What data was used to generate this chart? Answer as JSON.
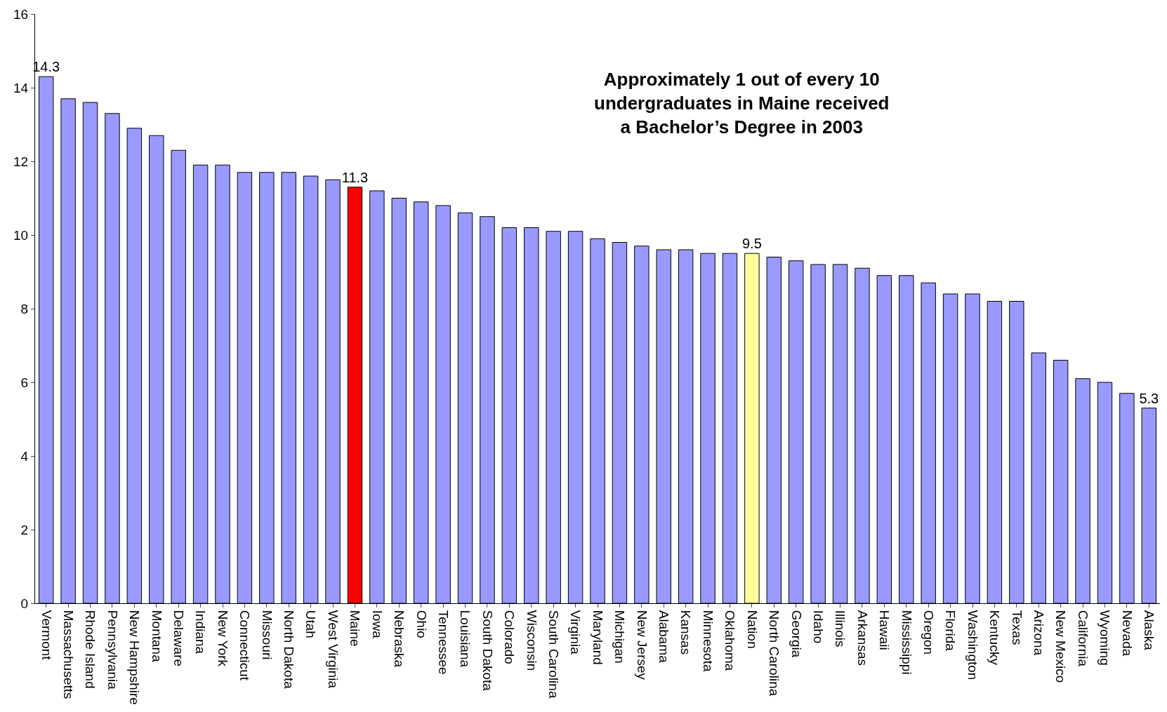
{
  "chart_data": {
    "type": "bar",
    "categories": [
      "Vermont",
      "Massachusetts",
      "Rhode Island",
      "Pennsylvania",
      "New Hampshire",
      "Montana",
      "Delaware",
      "Indiana",
      "New York",
      "Connecticut",
      "Missouri",
      "North Dakota",
      "Utah",
      "West Virginia",
      "Maine",
      "Iowa",
      "Nebraska",
      "Ohio",
      "Tennessee",
      "Louisiana",
      "South Dakota",
      "Colorado",
      "Wisconsin",
      "South Carolina",
      "Virginia",
      "Maryland",
      "Michigan",
      "New Jersey",
      "Alabama",
      "Kansas",
      "Minnesota",
      "Oklahoma",
      "Nation",
      "North Carolina",
      "Georgia",
      "Idaho",
      "Illinois",
      "Arkansas",
      "Hawaii",
      "Mississippi",
      "Oregon",
      "Florida",
      "Washington",
      "Kentucky",
      "Texas",
      "Arizona",
      "New Mexico",
      "California",
      "Wyoming",
      "Nevada",
      "Alaska"
    ],
    "values": [
      14.3,
      13.7,
      13.6,
      13.3,
      12.9,
      12.7,
      12.3,
      11.9,
      11.9,
      11.7,
      11.7,
      11.7,
      11.6,
      11.5,
      11.3,
      11.2,
      11.0,
      10.9,
      10.8,
      10.6,
      10.5,
      10.2,
      10.2,
      10.1,
      10.1,
      9.9,
      9.8,
      9.7,
      9.6,
      9.6,
      9.5,
      9.5,
      9.5,
      9.4,
      9.3,
      9.2,
      9.2,
      9.1,
      8.9,
      8.9,
      8.7,
      8.4,
      8.4,
      8.2,
      8.2,
      6.8,
      6.6,
      6.1,
      6.0,
      5.7,
      5.3
    ],
    "colors": [
      "#9999ff",
      "#9999ff",
      "#9999ff",
      "#9999ff",
      "#9999ff",
      "#9999ff",
      "#9999ff",
      "#9999ff",
      "#9999ff",
      "#9999ff",
      "#9999ff",
      "#9999ff",
      "#9999ff",
      "#9999ff",
      "#ff0000",
      "#9999ff",
      "#9999ff",
      "#9999ff",
      "#9999ff",
      "#9999ff",
      "#9999ff",
      "#9999ff",
      "#9999ff",
      "#9999ff",
      "#9999ff",
      "#9999ff",
      "#9999ff",
      "#9999ff",
      "#9999ff",
      "#9999ff",
      "#9999ff",
      "#9999ff",
      "#ffff99",
      "#9999ff",
      "#9999ff",
      "#9999ff",
      "#9999ff",
      "#9999ff",
      "#9999ff",
      "#9999ff",
      "#9999ff",
      "#9999ff",
      "#9999ff",
      "#9999ff",
      "#9999ff",
      "#9999ff",
      "#9999ff",
      "#9999ff",
      "#9999ff",
      "#9999ff",
      "#9999ff"
    ],
    "value_labels": [
      "14.3",
      null,
      null,
      null,
      null,
      null,
      null,
      null,
      null,
      null,
      null,
      null,
      null,
      null,
      "11.3",
      null,
      null,
      null,
      null,
      null,
      null,
      null,
      null,
      null,
      null,
      null,
      null,
      null,
      null,
      null,
      null,
      null,
      "9.5",
      null,
      null,
      null,
      null,
      null,
      null,
      null,
      null,
      null,
      null,
      null,
      null,
      null,
      null,
      null,
      null,
      null,
      "5.3"
    ],
    "ylim": [
      0,
      16
    ],
    "yticks": [
      0,
      2,
      4,
      6,
      8,
      10,
      12,
      14,
      16
    ],
    "annotations": [
      "Approximately 1 out of every 10\nundergraduates in Maine received\na Bachelor’s Degree in 2003"
    ],
    "legend": false
  }
}
